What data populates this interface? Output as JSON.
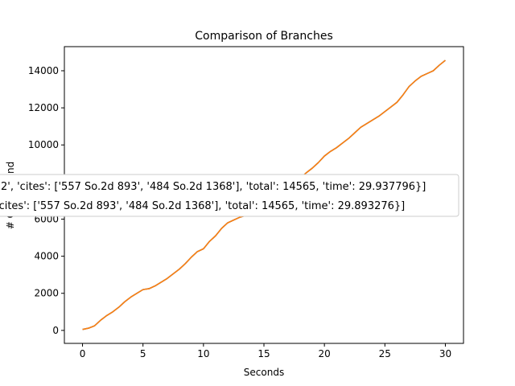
{
  "chart_data": {
    "type": "line",
    "title": "Comparison of Branches",
    "xlabel": "Seconds",
    "ylabel": "# Cites Found",
    "xlim": [
      -1.5,
      31.5
    ],
    "ylim": [
      -700,
      15300
    ],
    "xticks": [
      0,
      5,
      10,
      15,
      20,
      25,
      30
    ],
    "yticks": [
      0,
      2000,
      4000,
      6000,
      8000,
      10000,
      12000,
      14000
    ],
    "grid": false,
    "legend_placement": "center-left",
    "legend_entries": [
      "2', 'cites': ['557 So.2d 893', '484 So.2d 1368'], 'total': 14565, 'time': 29.937796}]",
      "'cites': ['557 So.2d 893', '484 So.2d 1368'], 'total': 14565, 'time': 29.893276}]"
    ],
    "series": [
      {
        "color": "#1f77b4",
        "x": [
          0,
          0.5,
          1,
          1.5,
          2,
          2.5,
          3,
          3.5,
          4,
          4.5,
          5,
          5.5,
          6,
          6.5,
          7,
          7.5,
          8,
          8.5,
          9,
          9.5,
          10,
          10.5,
          11,
          11.5,
          12,
          12.5,
          13,
          13.5,
          14,
          14.5,
          15,
          15.5,
          16,
          16.5,
          17,
          17.5,
          18,
          18.5,
          19,
          19.5,
          20,
          20.5,
          21,
          21.5,
          22,
          22.5,
          23,
          23.5,
          24,
          24.5,
          25,
          25.5,
          26,
          26.5,
          27,
          27.5,
          28,
          28.5,
          29,
          29.5,
          30
        ],
        "y": [
          50,
          120,
          250,
          550,
          800,
          1000,
          1250,
          1550,
          1800,
          2000,
          2200,
          2250,
          2400,
          2600,
          2800,
          3050,
          3300,
          3600,
          3950,
          4250,
          4400,
          4800,
          5100,
          5500,
          5800,
          5950,
          6100,
          6200,
          6350,
          6500,
          6700,
          6900,
          7100,
          7350,
          7600,
          7900,
          8200,
          8500,
          8750,
          9050,
          9400,
          9650,
          9850,
          10100,
          10350,
          10650,
          10950,
          11150,
          11350,
          11550,
          11800,
          12050,
          12300,
          12700,
          13150,
          13450,
          13700,
          13850,
          14000,
          14300,
          14565
        ]
      },
      {
        "color": "#ff7f0e",
        "x": [
          0,
          0.5,
          1,
          1.5,
          2,
          2.5,
          3,
          3.5,
          4,
          4.5,
          5,
          5.5,
          6,
          6.5,
          7,
          7.5,
          8,
          8.5,
          9,
          9.5,
          10,
          10.5,
          11,
          11.5,
          12,
          12.5,
          13,
          13.5,
          14,
          14.5,
          15,
          15.5,
          16,
          16.5,
          17,
          17.5,
          18,
          18.5,
          19,
          19.5,
          20,
          20.5,
          21,
          21.5,
          22,
          22.5,
          23,
          23.5,
          24,
          24.5,
          25,
          25.5,
          26,
          26.5,
          27,
          27.5,
          28,
          28.5,
          29,
          29.5,
          30
        ],
        "y": [
          50,
          120,
          250,
          550,
          800,
          1000,
          1250,
          1550,
          1800,
          2000,
          2200,
          2250,
          2400,
          2600,
          2800,
          3050,
          3300,
          3600,
          3950,
          4250,
          4400,
          4800,
          5100,
          5500,
          5800,
          5950,
          6100,
          6200,
          6350,
          6500,
          6700,
          6900,
          7100,
          7350,
          7600,
          7900,
          8200,
          8500,
          8750,
          9050,
          9400,
          9650,
          9850,
          10100,
          10350,
          10650,
          10950,
          11150,
          11350,
          11550,
          11800,
          12050,
          12300,
          12700,
          13150,
          13450,
          13700,
          13850,
          14000,
          14300,
          14565
        ]
      }
    ]
  }
}
